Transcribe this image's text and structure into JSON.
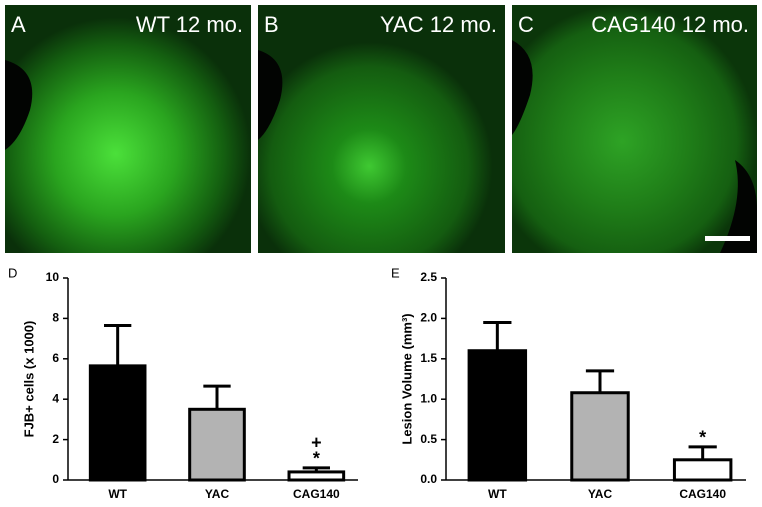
{
  "panels": [
    {
      "letter": "A",
      "label": "WT 12 mo."
    },
    {
      "letter": "B",
      "label": "YAC 12 mo."
    },
    {
      "letter": "C",
      "label": "CAG140 12 mo."
    }
  ],
  "chart_data": [
    {
      "type": "bar",
      "letter": "D",
      "y_label": "FJB+ cells (x 1000)",
      "categories": [
        "WT",
        "YAC",
        "CAG140"
      ],
      "values": [
        5.65,
        3.5,
        0.4
      ],
      "errors": [
        2.0,
        1.15,
        0.2
      ],
      "colors": [
        "#000000",
        "#b3b3b3",
        "#ffffff"
      ],
      "ylim": [
        0,
        10
      ],
      "yticks": [
        0,
        2,
        4,
        6,
        8,
        10
      ],
      "annotations": [
        "+",
        "*"
      ]
    },
    {
      "type": "bar",
      "letter": "E",
      "y_label": "Lesion Volume (mm³)",
      "categories": [
        "WT",
        "YAC",
        "CAG140"
      ],
      "values": [
        1.6,
        1.08,
        0.25
      ],
      "errors": [
        0.35,
        0.27,
        0.16
      ],
      "colors": [
        "#000000",
        "#b3b3b3",
        "#ffffff"
      ],
      "ylim": [
        0,
        2.5
      ],
      "yticks": [
        {
          "value": 0,
          "label": "0.0"
        },
        0.5,
        {
          "value": 1,
          "label": "1.0"
        },
        1.5,
        {
          "value": 2,
          "label": "2.0"
        },
        2.5
      ],
      "annotations": [
        "*"
      ]
    }
  ]
}
